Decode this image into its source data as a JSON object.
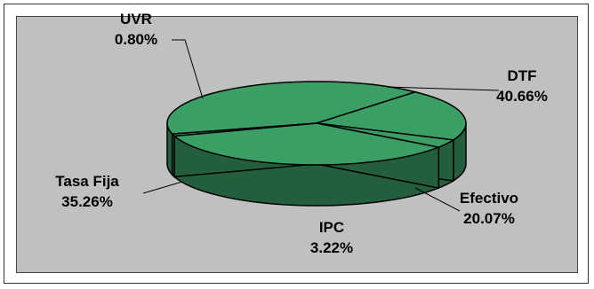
{
  "chart_data": {
    "type": "pie",
    "style": "3d",
    "title": "",
    "slices": [
      {
        "label": "DTF",
        "value": 40.66,
        "percent_text": "40.66%"
      },
      {
        "label": "Efectivo",
        "value": 20.07,
        "percent_text": "20.07%"
      },
      {
        "label": "IPC",
        "value": 3.22,
        "percent_text": "3.22%"
      },
      {
        "label": "Tasa Fija",
        "value": 35.26,
        "percent_text": "35.26%"
      },
      {
        "label": "UVR",
        "value": 0.8,
        "percent_text": "0.80%"
      }
    ],
    "legend": "none",
    "colors": {
      "top": "#3a9e65",
      "side": "#245f3d",
      "outline": "#000000",
      "background": "#c0c0c0"
    }
  }
}
